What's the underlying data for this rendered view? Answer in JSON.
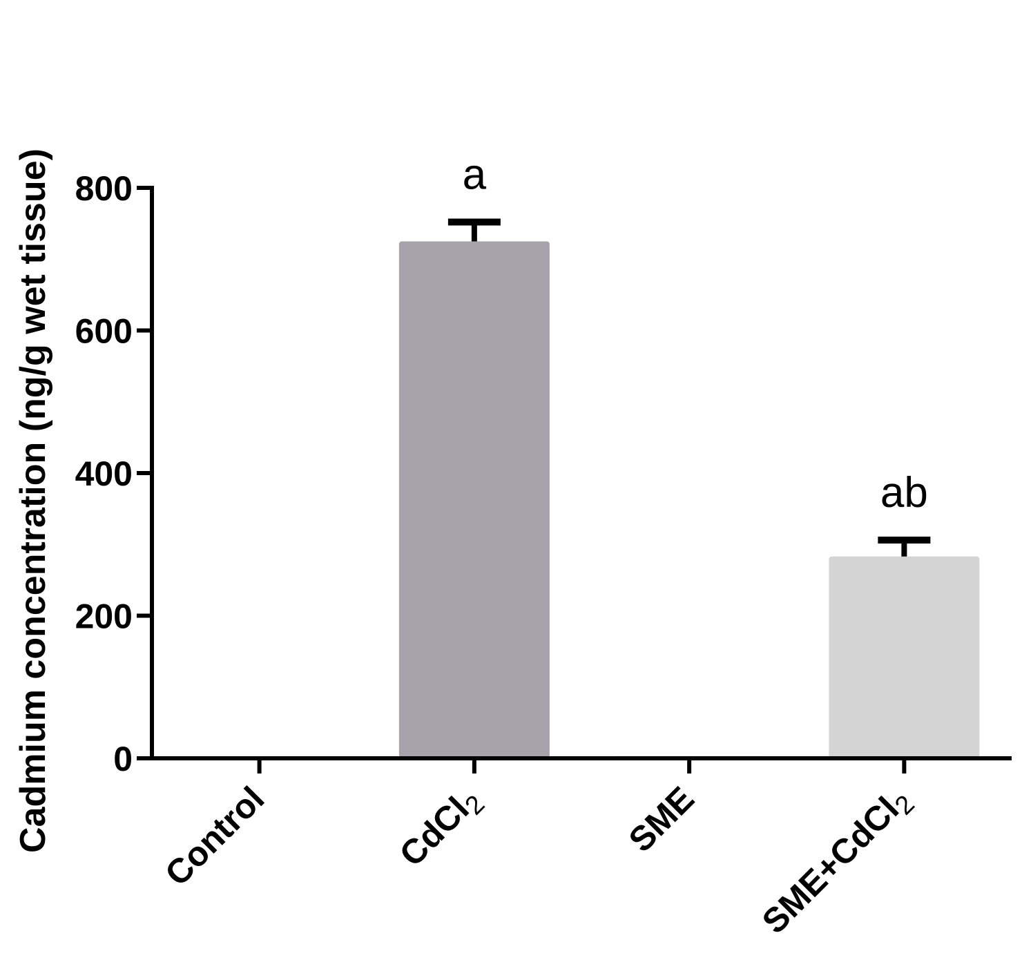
{
  "chart_data": {
    "type": "bar",
    "title": "",
    "xlabel": "",
    "ylabel": "Cadmium concentration (ng/g wet tissue)",
    "ylim": [
      0,
      800
    ],
    "yticks": [
      0,
      200,
      400,
      600,
      800
    ],
    "categories": [
      {
        "main": "Control",
        "sub": ""
      },
      {
        "main": "CdCl",
        "sub": "2"
      },
      {
        "main": "SME",
        "sub": ""
      },
      {
        "main": "SME+CdCl",
        "sub": "2"
      }
    ],
    "values": [
      2,
      725,
      3,
      283
    ],
    "errors": [
      0,
      27,
      0,
      23
    ],
    "significance": [
      "",
      "a",
      "",
      "ab"
    ],
    "colors": [
      "#a6a4aa",
      "#a6a4aa",
      "#bdbdbd",
      "#d4d4d4"
    ],
    "grid": false,
    "legend": "none"
  }
}
